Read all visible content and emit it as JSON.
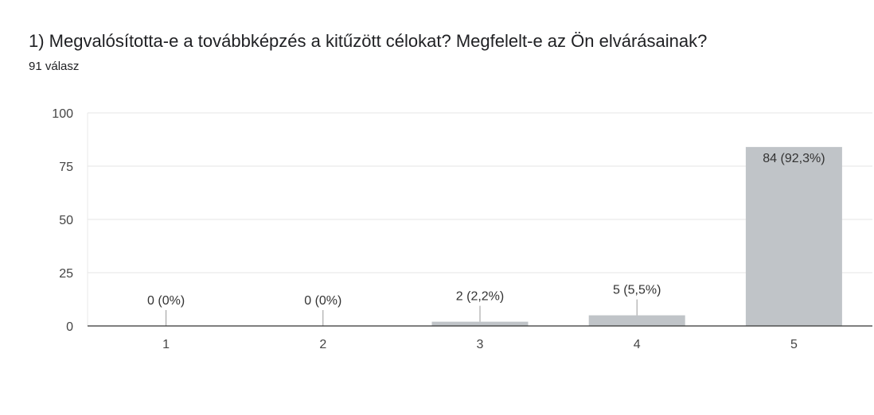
{
  "question": {
    "title": "1) Megvalósította-e a továbbképzés a kitűzött célokat? Megfelelt-e az Ön elvárásainak?",
    "response_count": "91 válasz"
  },
  "chart_data": {
    "type": "bar",
    "categories": [
      "1",
      "2",
      "3",
      "4",
      "5"
    ],
    "values": [
      0,
      0,
      2,
      5,
      84
    ],
    "data_labels": [
      "0 (0%)",
      "0 (0%)",
      "2 (2,2%)",
      "5 (5,5%)",
      "84 (92,3%)"
    ],
    "yticks": [
      "0",
      "25",
      "50",
      "75",
      "100"
    ],
    "ylim": [
      0,
      100
    ],
    "grid": true,
    "bar_color": "#c0c4c8",
    "title": "",
    "xlabel": "",
    "ylabel": ""
  }
}
